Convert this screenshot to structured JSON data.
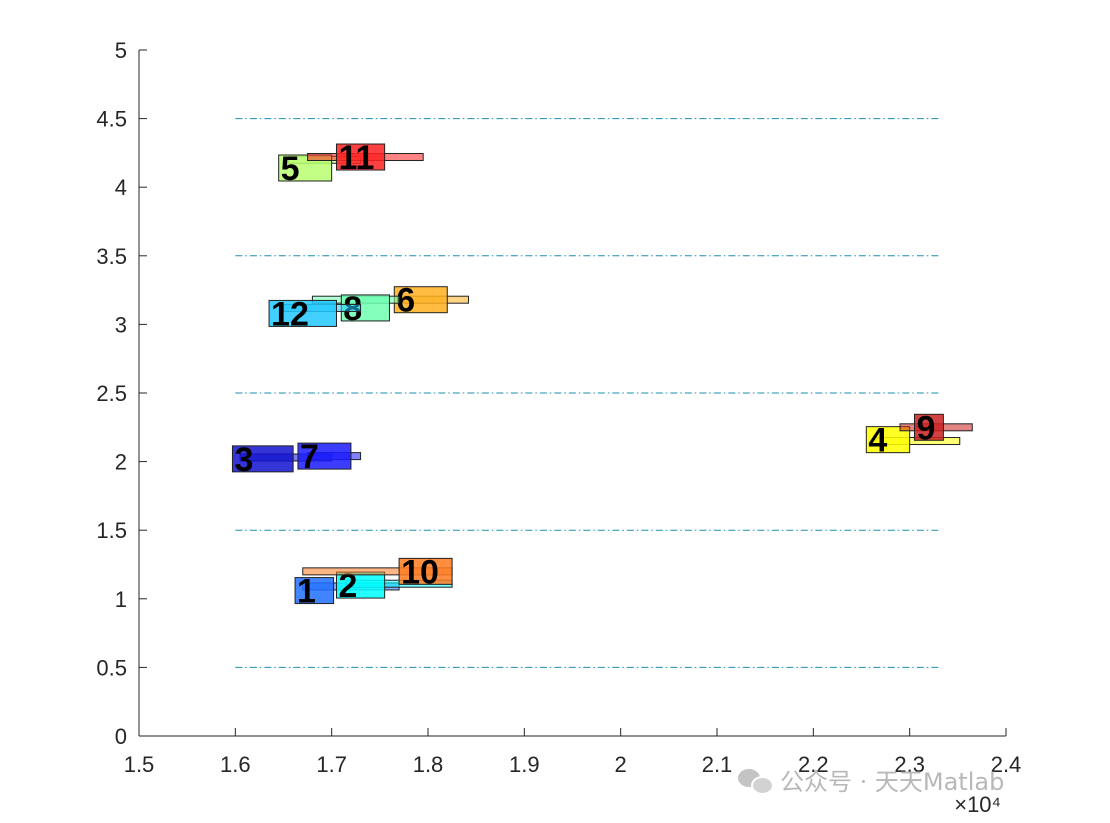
{
  "chart_data": {
    "type": "gantt",
    "xlim": [
      15000,
      24000
    ],
    "ylim": [
      0,
      5
    ],
    "x_ticks": [
      15000,
      16000,
      17000,
      18000,
      19000,
      20000,
      21000,
      22000,
      23000,
      24000
    ],
    "x_tick_labels": [
      "1.5",
      "1.6",
      "1.7",
      "1.8",
      "1.9",
      "2",
      "2.1",
      "2.2",
      "2.3",
      "2.4"
    ],
    "x_exponent_label": "×10⁴",
    "y_ticks": [
      0,
      0.5,
      1,
      1.5,
      2,
      2.5,
      3,
      3.5,
      4,
      4.5,
      5
    ],
    "y_tick_labels": [
      "0",
      "0.5",
      "1",
      "1.5",
      "2",
      "2.5",
      "3",
      "3.5",
      "4",
      "4.5",
      "5"
    ],
    "separator_lines": [
      0.5,
      1.5,
      2.5,
      3.5,
      4.5
    ],
    "separator_x_range": [
      16000,
      23300
    ],
    "separator_color": "#1a8fb0",
    "jobs": [
      {
        "label": "1",
        "start": 16620,
        "end": 17020,
        "y": 1.06,
        "color": "#1f6fff",
        "thin": {
          "start": 16700,
          "end": 17700,
          "y": 1.09
        }
      },
      {
        "label": "2",
        "start": 17050,
        "end": 17550,
        "y": 1.1,
        "color": "#00ffff",
        "thin": {
          "start": 17150,
          "end": 18250,
          "y": 1.11
        }
      },
      {
        "label": "3",
        "start": 15970,
        "end": 16600,
        "y": 2.02,
        "color": "#1010d0",
        "thin": {
          "start": 16050,
          "end": 17000,
          "y": 2.03
        }
      },
      {
        "label": "4",
        "start": 22550,
        "end": 23000,
        "y": 2.16,
        "color": "#ffff00",
        "thin": {
          "start": 22650,
          "end": 23520,
          "y": 2.15
        }
      },
      {
        "label": "5",
        "start": 16450,
        "end": 17000,
        "y": 4.14,
        "color": "#b8ff70",
        "thin": {
          "start": 16550,
          "end": 17300,
          "y": 4.2
        }
      },
      {
        "label": "6",
        "start": 17650,
        "end": 18200,
        "y": 3.18,
        "color": "#ffb020",
        "thin": {
          "start": 17750,
          "end": 18420,
          "y": 3.18
        }
      },
      {
        "label": "7",
        "start": 16650,
        "end": 17200,
        "y": 2.04,
        "color": "#1a1aff",
        "thin": {
          "start": 16750,
          "end": 17300,
          "y": 2.04
        }
      },
      {
        "label": "8",
        "start": 17100,
        "end": 17600,
        "y": 3.12,
        "color": "#6effb0",
        "thin": {
          "start": 16800,
          "end": 17700,
          "y": 3.18
        }
      },
      {
        "label": "9",
        "start": 23050,
        "end": 23350,
        "y": 2.25,
        "color": "#cc2020",
        "thin": {
          "start": 22900,
          "end": 23650,
          "y": 2.25
        }
      },
      {
        "label": "10",
        "start": 17700,
        "end": 18250,
        "y": 1.2,
        "color": "#ff7a20",
        "thin": {
          "start": 16700,
          "end": 18250,
          "y": 1.2
        }
      },
      {
        "label": "11",
        "start": 17050,
        "end": 17550,
        "y": 4.22,
        "color": "#ff2020",
        "thin": {
          "start": 16750,
          "end": 17950,
          "y": 4.22
        }
      },
      {
        "label": "12",
        "start": 16350,
        "end": 17050,
        "y": 3.08,
        "color": "#20c8ff",
        "thin": {
          "start": 16500,
          "end": 17300,
          "y": 3.12
        }
      }
    ]
  },
  "watermark": {
    "text": "公众号 · 天天Matlab",
    "icon": "wechat-icon"
  }
}
